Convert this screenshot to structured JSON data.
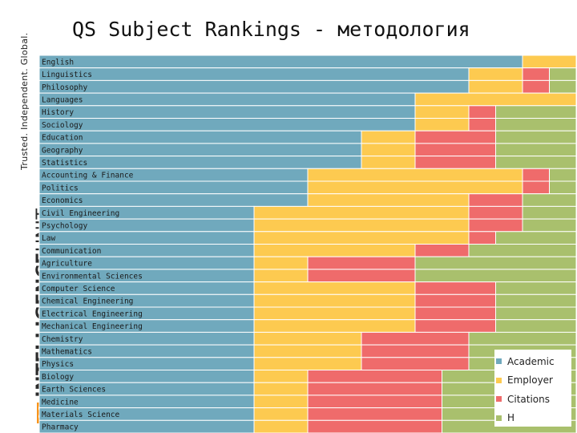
{
  "side": {
    "tagline": "Trusted. Independent. Global.",
    "brand_badge": "QS",
    "brand_bold": "INTELLIGENCE",
    "brand_light": "UNIT"
  },
  "title": "QS Subject Rankings - методология",
  "colors": {
    "Academic": "#70a9bd",
    "Employer": "#fdca50",
    "Citations": "#ef6b6b",
    "H": "#a9c06d"
  },
  "chart_data": {
    "type": "bar",
    "stacked": true,
    "orientation": "horizontal",
    "normalized_to": 100,
    "categories": [
      "English",
      "Linguistics",
      "Philosophy",
      "Languages",
      "History",
      "Sociology",
      "Education",
      "Geography",
      "Statistics",
      "Accounting & Finance",
      "Politics",
      "Economics",
      "Civil Engineering",
      "Psychology",
      "Law",
      "Communication",
      "Agriculture",
      "Environmental Sciences",
      "Computer Science",
      "Chemical Engineering",
      "Electrical Engineering",
      "Mechanical Engineering",
      "Chemistry",
      "Mathematics",
      "Physics",
      "Biology",
      "Earth Sciences",
      "Medicine",
      "Materials Science",
      "Pharmacy"
    ],
    "series": [
      {
        "name": "Academic",
        "values": [
          90,
          80,
          80,
          70,
          70,
          70,
          60,
          60,
          60,
          50,
          50,
          50,
          40,
          40,
          40,
          40,
          40,
          40,
          40,
          40,
          40,
          40,
          40,
          40,
          40,
          40,
          40,
          40,
          40,
          40
        ]
      },
      {
        "name": "Employer",
        "values": [
          10,
          10,
          10,
          30,
          10,
          10,
          10,
          10,
          10,
          40,
          40,
          30,
          40,
          40,
          40,
          30,
          10,
          10,
          30,
          30,
          30,
          30,
          20,
          20,
          20,
          10,
          10,
          10,
          10,
          10
        ]
      },
      {
        "name": "Citations",
        "values": [
          0,
          5,
          5,
          0,
          5,
          5,
          15,
          15,
          15,
          5,
          5,
          10,
          10,
          10,
          5,
          10,
          20,
          20,
          15,
          15,
          15,
          15,
          20,
          20,
          20,
          25,
          25,
          25,
          25,
          25
        ]
      },
      {
        "name": "H",
        "values": [
          0,
          5,
          5,
          0,
          15,
          15,
          15,
          15,
          15,
          5,
          5,
          10,
          10,
          10,
          15,
          20,
          30,
          30,
          15,
          15,
          15,
          15,
          20,
          20,
          20,
          25,
          25,
          25,
          25,
          25
        ]
      }
    ],
    "legend": [
      "Academic",
      "Employer",
      "Citations",
      "H"
    ],
    "legend_position": "bottom-right",
    "grid": false
  }
}
